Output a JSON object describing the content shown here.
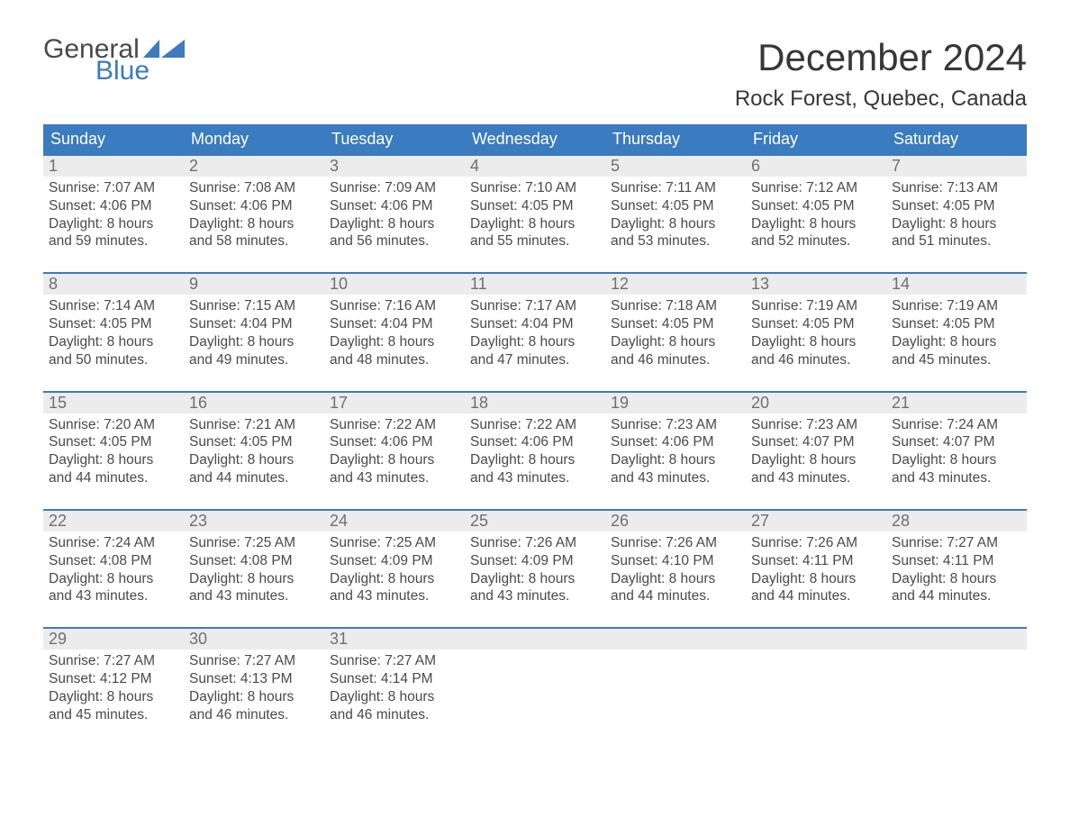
{
  "brand": {
    "word1": "General",
    "word2": "Blue",
    "flag_color": "#3b7bbf",
    "word1_color": "#4a4a4a",
    "word2_color": "#3b7bbf"
  },
  "title": "December 2024",
  "location": "Rock Forest, Quebec, Canada",
  "colors": {
    "header_bg": "#3b7bbf",
    "header_text": "#ffffff",
    "daynum_bg": "#ececec",
    "daynum_text": "#6f6f6f",
    "body_text": "#4a4a4a",
    "week_border": "#3b7bbf",
    "page_bg": "#ffffff"
  },
  "day_names": [
    "Sunday",
    "Monday",
    "Tuesday",
    "Wednesday",
    "Thursday",
    "Friday",
    "Saturday"
  ],
  "weeks": [
    [
      {
        "n": "1",
        "sunrise": "Sunrise: 7:07 AM",
        "sunset": "Sunset: 4:06 PM",
        "d1": "Daylight: 8 hours",
        "d2": "and 59 minutes."
      },
      {
        "n": "2",
        "sunrise": "Sunrise: 7:08 AM",
        "sunset": "Sunset: 4:06 PM",
        "d1": "Daylight: 8 hours",
        "d2": "and 58 minutes."
      },
      {
        "n": "3",
        "sunrise": "Sunrise: 7:09 AM",
        "sunset": "Sunset: 4:06 PM",
        "d1": "Daylight: 8 hours",
        "d2": "and 56 minutes."
      },
      {
        "n": "4",
        "sunrise": "Sunrise: 7:10 AM",
        "sunset": "Sunset: 4:05 PM",
        "d1": "Daylight: 8 hours",
        "d2": "and 55 minutes."
      },
      {
        "n": "5",
        "sunrise": "Sunrise: 7:11 AM",
        "sunset": "Sunset: 4:05 PM",
        "d1": "Daylight: 8 hours",
        "d2": "and 53 minutes."
      },
      {
        "n": "6",
        "sunrise": "Sunrise: 7:12 AM",
        "sunset": "Sunset: 4:05 PM",
        "d1": "Daylight: 8 hours",
        "d2": "and 52 minutes."
      },
      {
        "n": "7",
        "sunrise": "Sunrise: 7:13 AM",
        "sunset": "Sunset: 4:05 PM",
        "d1": "Daylight: 8 hours",
        "d2": "and 51 minutes."
      }
    ],
    [
      {
        "n": "8",
        "sunrise": "Sunrise: 7:14 AM",
        "sunset": "Sunset: 4:05 PM",
        "d1": "Daylight: 8 hours",
        "d2": "and 50 minutes."
      },
      {
        "n": "9",
        "sunrise": "Sunrise: 7:15 AM",
        "sunset": "Sunset: 4:04 PM",
        "d1": "Daylight: 8 hours",
        "d2": "and 49 minutes."
      },
      {
        "n": "10",
        "sunrise": "Sunrise: 7:16 AM",
        "sunset": "Sunset: 4:04 PM",
        "d1": "Daylight: 8 hours",
        "d2": "and 48 minutes."
      },
      {
        "n": "11",
        "sunrise": "Sunrise: 7:17 AM",
        "sunset": "Sunset: 4:04 PM",
        "d1": "Daylight: 8 hours",
        "d2": "and 47 minutes."
      },
      {
        "n": "12",
        "sunrise": "Sunrise: 7:18 AM",
        "sunset": "Sunset: 4:05 PM",
        "d1": "Daylight: 8 hours",
        "d2": "and 46 minutes."
      },
      {
        "n": "13",
        "sunrise": "Sunrise: 7:19 AM",
        "sunset": "Sunset: 4:05 PM",
        "d1": "Daylight: 8 hours",
        "d2": "and 46 minutes."
      },
      {
        "n": "14",
        "sunrise": "Sunrise: 7:19 AM",
        "sunset": "Sunset: 4:05 PM",
        "d1": "Daylight: 8 hours",
        "d2": "and 45 minutes."
      }
    ],
    [
      {
        "n": "15",
        "sunrise": "Sunrise: 7:20 AM",
        "sunset": "Sunset: 4:05 PM",
        "d1": "Daylight: 8 hours",
        "d2": "and 44 minutes."
      },
      {
        "n": "16",
        "sunrise": "Sunrise: 7:21 AM",
        "sunset": "Sunset: 4:05 PM",
        "d1": "Daylight: 8 hours",
        "d2": "and 44 minutes."
      },
      {
        "n": "17",
        "sunrise": "Sunrise: 7:22 AM",
        "sunset": "Sunset: 4:06 PM",
        "d1": "Daylight: 8 hours",
        "d2": "and 43 minutes."
      },
      {
        "n": "18",
        "sunrise": "Sunrise: 7:22 AM",
        "sunset": "Sunset: 4:06 PM",
        "d1": "Daylight: 8 hours",
        "d2": "and 43 minutes."
      },
      {
        "n": "19",
        "sunrise": "Sunrise: 7:23 AM",
        "sunset": "Sunset: 4:06 PM",
        "d1": "Daylight: 8 hours",
        "d2": "and 43 minutes."
      },
      {
        "n": "20",
        "sunrise": "Sunrise: 7:23 AM",
        "sunset": "Sunset: 4:07 PM",
        "d1": "Daylight: 8 hours",
        "d2": "and 43 minutes."
      },
      {
        "n": "21",
        "sunrise": "Sunrise: 7:24 AM",
        "sunset": "Sunset: 4:07 PM",
        "d1": "Daylight: 8 hours",
        "d2": "and 43 minutes."
      }
    ],
    [
      {
        "n": "22",
        "sunrise": "Sunrise: 7:24 AM",
        "sunset": "Sunset: 4:08 PM",
        "d1": "Daylight: 8 hours",
        "d2": "and 43 minutes."
      },
      {
        "n": "23",
        "sunrise": "Sunrise: 7:25 AM",
        "sunset": "Sunset: 4:08 PM",
        "d1": "Daylight: 8 hours",
        "d2": "and 43 minutes."
      },
      {
        "n": "24",
        "sunrise": "Sunrise: 7:25 AM",
        "sunset": "Sunset: 4:09 PM",
        "d1": "Daylight: 8 hours",
        "d2": "and 43 minutes."
      },
      {
        "n": "25",
        "sunrise": "Sunrise: 7:26 AM",
        "sunset": "Sunset: 4:09 PM",
        "d1": "Daylight: 8 hours",
        "d2": "and 43 minutes."
      },
      {
        "n": "26",
        "sunrise": "Sunrise: 7:26 AM",
        "sunset": "Sunset: 4:10 PM",
        "d1": "Daylight: 8 hours",
        "d2": "and 44 minutes."
      },
      {
        "n": "27",
        "sunrise": "Sunrise: 7:26 AM",
        "sunset": "Sunset: 4:11 PM",
        "d1": "Daylight: 8 hours",
        "d2": "and 44 minutes."
      },
      {
        "n": "28",
        "sunrise": "Sunrise: 7:27 AM",
        "sunset": "Sunset: 4:11 PM",
        "d1": "Daylight: 8 hours",
        "d2": "and 44 minutes."
      }
    ],
    [
      {
        "n": "29",
        "sunrise": "Sunrise: 7:27 AM",
        "sunset": "Sunset: 4:12 PM",
        "d1": "Daylight: 8 hours",
        "d2": "and 45 minutes."
      },
      {
        "n": "30",
        "sunrise": "Sunrise: 7:27 AM",
        "sunset": "Sunset: 4:13 PM",
        "d1": "Daylight: 8 hours",
        "d2": "and 46 minutes."
      },
      {
        "n": "31",
        "sunrise": "Sunrise: 7:27 AM",
        "sunset": "Sunset: 4:14 PM",
        "d1": "Daylight: 8 hours",
        "d2": "and 46 minutes."
      },
      null,
      null,
      null,
      null
    ]
  ]
}
